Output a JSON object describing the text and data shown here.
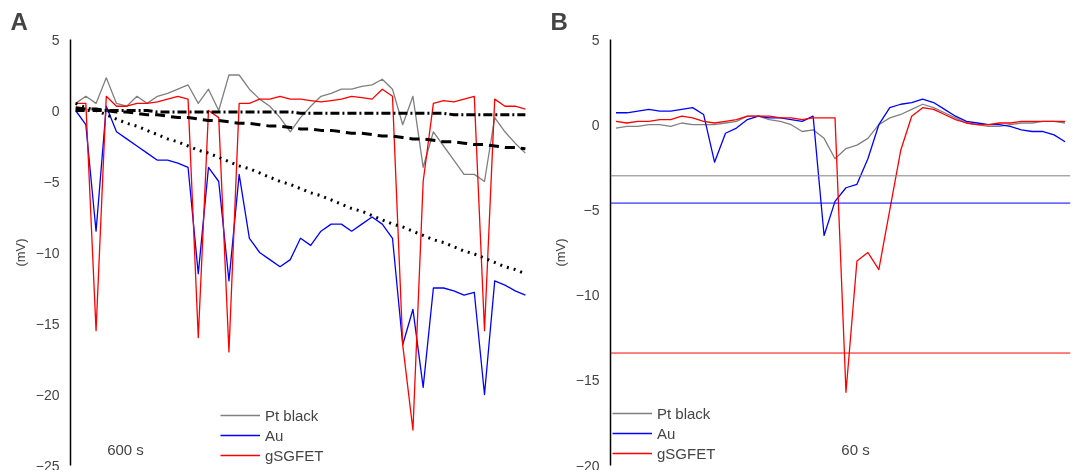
{
  "chart_data": [
    {
      "type": "line",
      "title": "A",
      "ylabel": "(mV)",
      "ylim": [
        -25,
        5
      ],
      "yticks": [
        -25,
        -20,
        -15,
        -10,
        -5,
        0,
        5
      ],
      "tick_labels": "y",
      "legend": "bottom",
      "annotations": [
        "600 s"
      ],
      "categories": [
        null,
        null,
        null,
        null,
        null,
        null,
        null,
        null,
        null,
        null,
        null,
        null,
        null,
        null,
        null,
        null,
        null,
        null,
        null,
        null,
        null,
        null,
        null,
        null,
        null,
        null,
        null,
        null,
        null,
        null,
        null,
        null,
        null,
        null,
        null,
        null,
        null,
        null,
        null,
        null,
        null,
        null,
        null,
        null,
        null
      ],
      "series": [
        {
          "name": "Pt black",
          "color": "#808080",
          "values": [
            0.5,
            1,
            0.5,
            2.3,
            0.5,
            0.3,
            1,
            0.5,
            1,
            1.2,
            1.5,
            1.8,
            0.5,
            1.5,
            0,
            2.5,
            2.5,
            1.5,
            0.8,
            0.3,
            -0.5,
            -1.5,
            -0.5,
            0.3,
            1,
            1.2,
            1.5,
            1.5,
            1.7,
            1.8,
            2.2,
            1.5,
            -1,
            1,
            -4,
            -1.5,
            -2.5,
            -3.5,
            -4.5,
            -4.5,
            -5,
            -0.5,
            -1.5,
            -2.3,
            -3
          ]
        },
        {
          "name": "Au",
          "color": "#0000ff",
          "values": [
            0,
            -1,
            -8.5,
            0.3,
            -1.5,
            -2,
            -2.5,
            -3,
            -3.5,
            -3.5,
            -3.7,
            -4,
            -11.5,
            -4,
            -5,
            -12,
            -4.5,
            -9,
            -10,
            -10.5,
            -11,
            -10.5,
            -9,
            -9.5,
            -8.5,
            -8,
            -8,
            -8.5,
            -8,
            -7.5,
            -8,
            -9,
            -16.5,
            -14,
            -19.5,
            -12.5,
            -12.5,
            -12.7,
            -13,
            -12.8,
            -20,
            -12,
            -12.3,
            -12.7,
            -13
          ]
        },
        {
          "name": "gSGFET",
          "color": "#ff0000",
          "values": [
            0.5,
            0.5,
            -15.5,
            1,
            0.3,
            0.3,
            0.5,
            0.5,
            0.6,
            0.8,
            1,
            0.8,
            -16,
            0,
            -0.5,
            -17,
            0.5,
            0.5,
            0.8,
            0.8,
            1,
            0.8,
            0.8,
            0.7,
            0.6,
            0.7,
            0.8,
            1,
            0.9,
            0.8,
            1.5,
            1,
            -16.5,
            -22.5,
            -5,
            0.5,
            0.7,
            0.6,
            0.8,
            1,
            -15.5,
            0.8,
            0.3,
            0.3,
            0.1
          ]
        },
        {
          "color": "#000000",
          "line_style": "dashdot",
          "values": [
            0,
            0,
            0,
            0,
            0,
            0,
            0,
            0,
            -0.1,
            -0.1,
            -0.1,
            -0.1,
            -0.1,
            -0.1,
            -0.1,
            -0.1,
            -0.1,
            -0.1,
            -0.1,
            -0.1,
            -0.1,
            -0.1,
            -0.2,
            -0.2,
            -0.2,
            -0.2,
            -0.2,
            -0.2,
            -0.2,
            -0.2,
            -0.2,
            -0.2,
            -0.2,
            -0.2,
            -0.2,
            -0.2,
            -0.2,
            -0.3,
            -0.3,
            -0.3,
            -0.3,
            -0.3,
            -0.3,
            -0.3,
            -0.3
          ]
        },
        {
          "color": "#000000",
          "line_style": "dashed",
          "values": [
            0.2,
            0.1,
            0.1,
            0,
            -0.1,
            -0.1,
            -0.2,
            -0.3,
            -0.3,
            -0.4,
            -0.5,
            -0.5,
            -0.6,
            -0.7,
            -0.7,
            -0.8,
            -0.9,
            -0.9,
            -1,
            -1.1,
            -1.1,
            -1.2,
            -1.3,
            -1.3,
            -1.4,
            -1.4,
            -1.5,
            -1.6,
            -1.6,
            -1.7,
            -1.8,
            -1.8,
            -1.9,
            -2,
            -2,
            -2.1,
            -2.2,
            -2.2,
            -2.3,
            -2.4,
            -2.4,
            -2.5,
            -2.6,
            -2.6,
            -2.7
          ]
        },
        {
          "color": "#000000",
          "line_style": "dotted",
          "values": [
            0.5,
            0.2,
            0,
            -0.3,
            -0.6,
            -0.9,
            -1.1,
            -1.4,
            -1.7,
            -2,
            -2.2,
            -2.5,
            -2.8,
            -3,
            -3.3,
            -3.6,
            -3.9,
            -4.1,
            -4.4,
            -4.7,
            -5,
            -5.2,
            -5.5,
            -5.8,
            -6,
            -6.3,
            -6.6,
            -6.9,
            -7.1,
            -7.4,
            -7.7,
            -8,
            -8.2,
            -8.5,
            -8.8,
            -9.1,
            -9.3,
            -9.6,
            -9.9,
            -10.1,
            -10.4,
            -10.7,
            -11,
            -11.2,
            -11.5
          ]
        }
      ]
    },
    {
      "type": "line",
      "title": "B",
      "ylabel": "(mV)",
      "ylim": [
        -20,
        5
      ],
      "yticks": [
        -20,
        -15,
        -10,
        -5,
        0,
        5
      ],
      "tick_labels": "y",
      "legend": "bottom left",
      "annotations": [
        "60 s"
      ],
      "categories": [
        null,
        null,
        null,
        null,
        null,
        null,
        null,
        null,
        null,
        null,
        null,
        null,
        null,
        null,
        null,
        null,
        null,
        null,
        null,
        null,
        null,
        null,
        null,
        null,
        null,
        null,
        null,
        null,
        null,
        null,
        null,
        null,
        null,
        null,
        null,
        null,
        null,
        null,
        null,
        null,
        null,
        null
      ],
      "ref_lines": [
        {
          "axis": "y",
          "value": -3,
          "color": "#808080"
        },
        {
          "axis": "y",
          "value": -4.6,
          "color": "#0000ff"
        },
        {
          "axis": "y",
          "value": -13.4,
          "color": "#ff0000"
        }
      ],
      "series": [
        {
          "name": "Pt black",
          "color": "#808080",
          "values": [
            -0.2,
            -0.1,
            -0.1,
            0,
            0,
            -0.1,
            0.1,
            0,
            0,
            0,
            0.1,
            0.2,
            0.5,
            0.5,
            0.3,
            0.2,
            0,
            -0.4,
            -0.3,
            -0.8,
            -2,
            -1.4,
            -1.2,
            -0.8,
            0,
            0.4,
            0.6,
            0.9,
            1.2,
            1,
            0.7,
            0.4,
            0.1,
            0,
            -0.1,
            -0.1,
            0,
            0.1,
            0.1,
            0.2,
            0.2,
            0.1
          ]
        },
        {
          "name": "Au",
          "color": "#0000ff",
          "values": [
            0.7,
            0.7,
            0.8,
            0.9,
            0.8,
            0.8,
            0.9,
            1,
            0.6,
            -2.2,
            -0.5,
            -0.2,
            0.3,
            0.5,
            0.4,
            0.4,
            0.3,
            0.2,
            0.5,
            -6.5,
            -4.5,
            -3.7,
            -3.5,
            -2,
            0,
            1,
            1.2,
            1.3,
            1.5,
            1.3,
            0.9,
            0.5,
            0.2,
            0.1,
            0,
            0,
            -0.1,
            -0.3,
            -0.4,
            -0.4,
            -0.6,
            -1
          ]
        },
        {
          "name": "gSGFET",
          "color": "#ff0000",
          "values": [
            0.2,
            0.1,
            0.2,
            0.2,
            0.3,
            0.3,
            0.5,
            0.4,
            0.2,
            0.1,
            0.2,
            0.3,
            0.5,
            0.5,
            0.5,
            0.4,
            0.4,
            0.3,
            0.4,
            0.4,
            0.4,
            -15.7,
            -8,
            -7.5,
            -8.5,
            -5,
            -1.5,
            0.5,
            1,
            0.9,
            0.6,
            0.3,
            0.1,
            0,
            0,
            0.1,
            0.1,
            0.2,
            0.2,
            0.2,
            0.2,
            0.2
          ]
        }
      ]
    }
  ]
}
